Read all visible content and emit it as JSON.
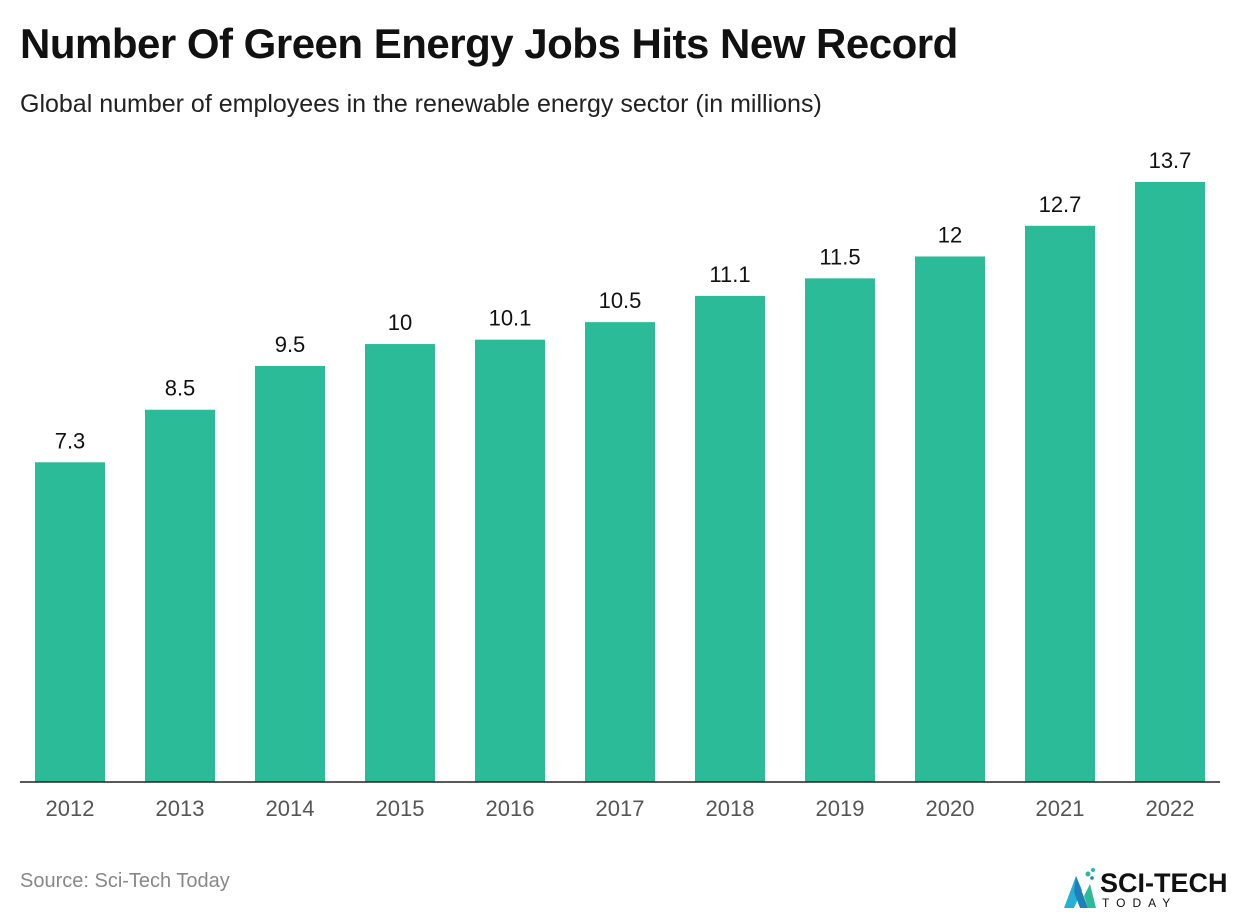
{
  "header": {
    "title": "Number Of Green Energy Jobs Hits New Record",
    "subtitle": "Global number of employees in the renewable energy sector (in millions)"
  },
  "footer": {
    "source": "Source: Sci-Tech Today",
    "logo_text": "SCI-TECH",
    "logo_subtext": "TODAY"
  },
  "colors": {
    "bar": "#2bbb98",
    "axis": "#222222",
    "logo_accent": "#27b0d6"
  },
  "chart_data": {
    "type": "bar",
    "title": "Number Of Green Energy Jobs Hits New Record",
    "subtitle": "Global number of employees in the renewable energy sector (in millions)",
    "categories": [
      "2012",
      "2013",
      "2014",
      "2015",
      "2016",
      "2017",
      "2018",
      "2019",
      "2020",
      "2021",
      "2022"
    ],
    "values": [
      7.3,
      8.5,
      9.5,
      10,
      10.1,
      10.5,
      11.1,
      11.5,
      12,
      12.7,
      13.7
    ],
    "value_labels": [
      "7.3",
      "8.5",
      "9.5",
      "10",
      "10.1",
      "10.5",
      "11.1",
      "11.5",
      "12",
      "12.7",
      "13.7"
    ],
    "xlabel": "",
    "ylabel": "",
    "ylim": [
      0,
      13.7
    ],
    "grid": false,
    "legend": "none"
  }
}
